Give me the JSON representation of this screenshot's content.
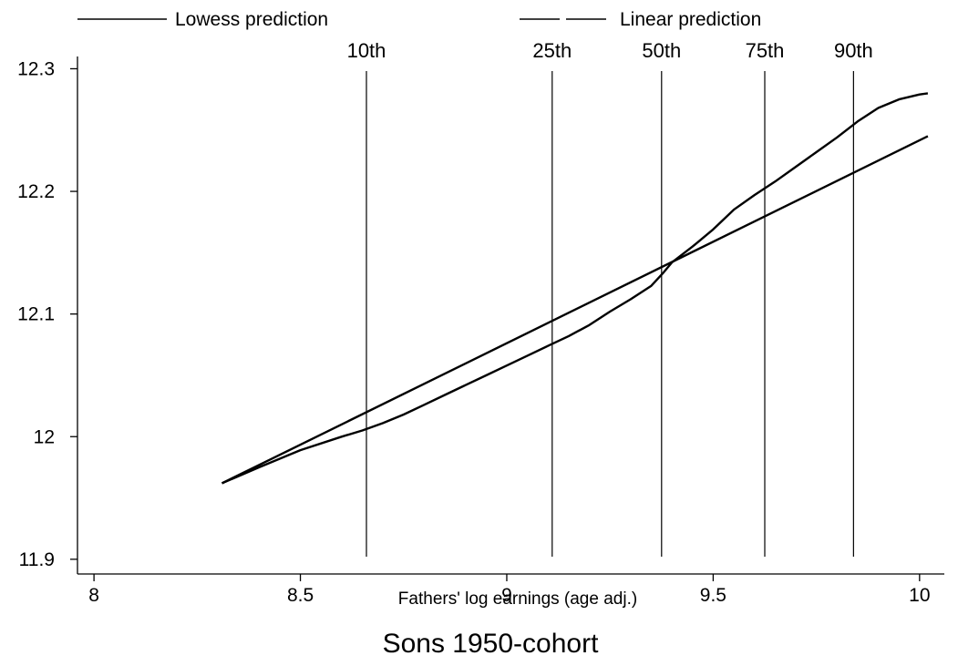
{
  "chart_data": {
    "type": "line",
    "title": "",
    "caption": "Sons 1950-cohort",
    "xlabel": "Fathers' log earnings (age adj.)",
    "ylabel": "",
    "xlim": [
      7.96,
      10.06
    ],
    "ylim": [
      11.888,
      12.31
    ],
    "x_ticks": [
      8,
      8.5,
      9,
      9.5,
      10
    ],
    "x_tick_labels": [
      "8",
      "8.5",
      "9",
      "9.5",
      "10"
    ],
    "y_ticks": [
      11.9,
      12,
      12.1,
      12.2,
      12.3
    ],
    "y_tick_labels": [
      "11.9",
      "12",
      "12.1",
      "12.2",
      "12.3"
    ],
    "grid": false,
    "legend": {
      "position": "top"
    },
    "series": [
      {
        "name": "Lowess prediction",
        "color": "#000000",
        "x": [
          8.31,
          8.4,
          8.5,
          8.6,
          8.65,
          8.7,
          8.75,
          8.8,
          8.85,
          8.9,
          8.95,
          9.0,
          9.05,
          9.1,
          9.15,
          9.2,
          9.25,
          9.3,
          9.35,
          9.38,
          9.4,
          9.45,
          9.5,
          9.55,
          9.6,
          9.65,
          9.7,
          9.75,
          9.8,
          9.85,
          9.9,
          9.95,
          10.0,
          10.02
        ],
        "y": [
          11.962,
          11.975,
          11.989,
          12.0,
          12.005,
          12.011,
          12.018,
          12.026,
          12.034,
          12.042,
          12.05,
          12.058,
          12.066,
          12.074,
          12.082,
          12.091,
          12.102,
          12.112,
          12.123,
          12.134,
          12.142,
          12.155,
          12.169,
          12.185,
          12.197,
          12.208,
          12.22,
          12.232,
          12.244,
          12.257,
          12.268,
          12.275,
          12.279,
          12.28
        ]
      },
      {
        "name": "Linear prediction",
        "color": "#000000",
        "x": [
          8.31,
          10.02
        ],
        "y": [
          11.962,
          12.245
        ]
      }
    ],
    "percentiles": [
      {
        "label": "10th",
        "x": 8.66
      },
      {
        "label": "25th",
        "x": 9.11
      },
      {
        "label": "50th",
        "x": 9.375
      },
      {
        "label": "75th",
        "x": 9.625
      },
      {
        "label": "90th",
        "x": 9.84
      }
    ]
  }
}
